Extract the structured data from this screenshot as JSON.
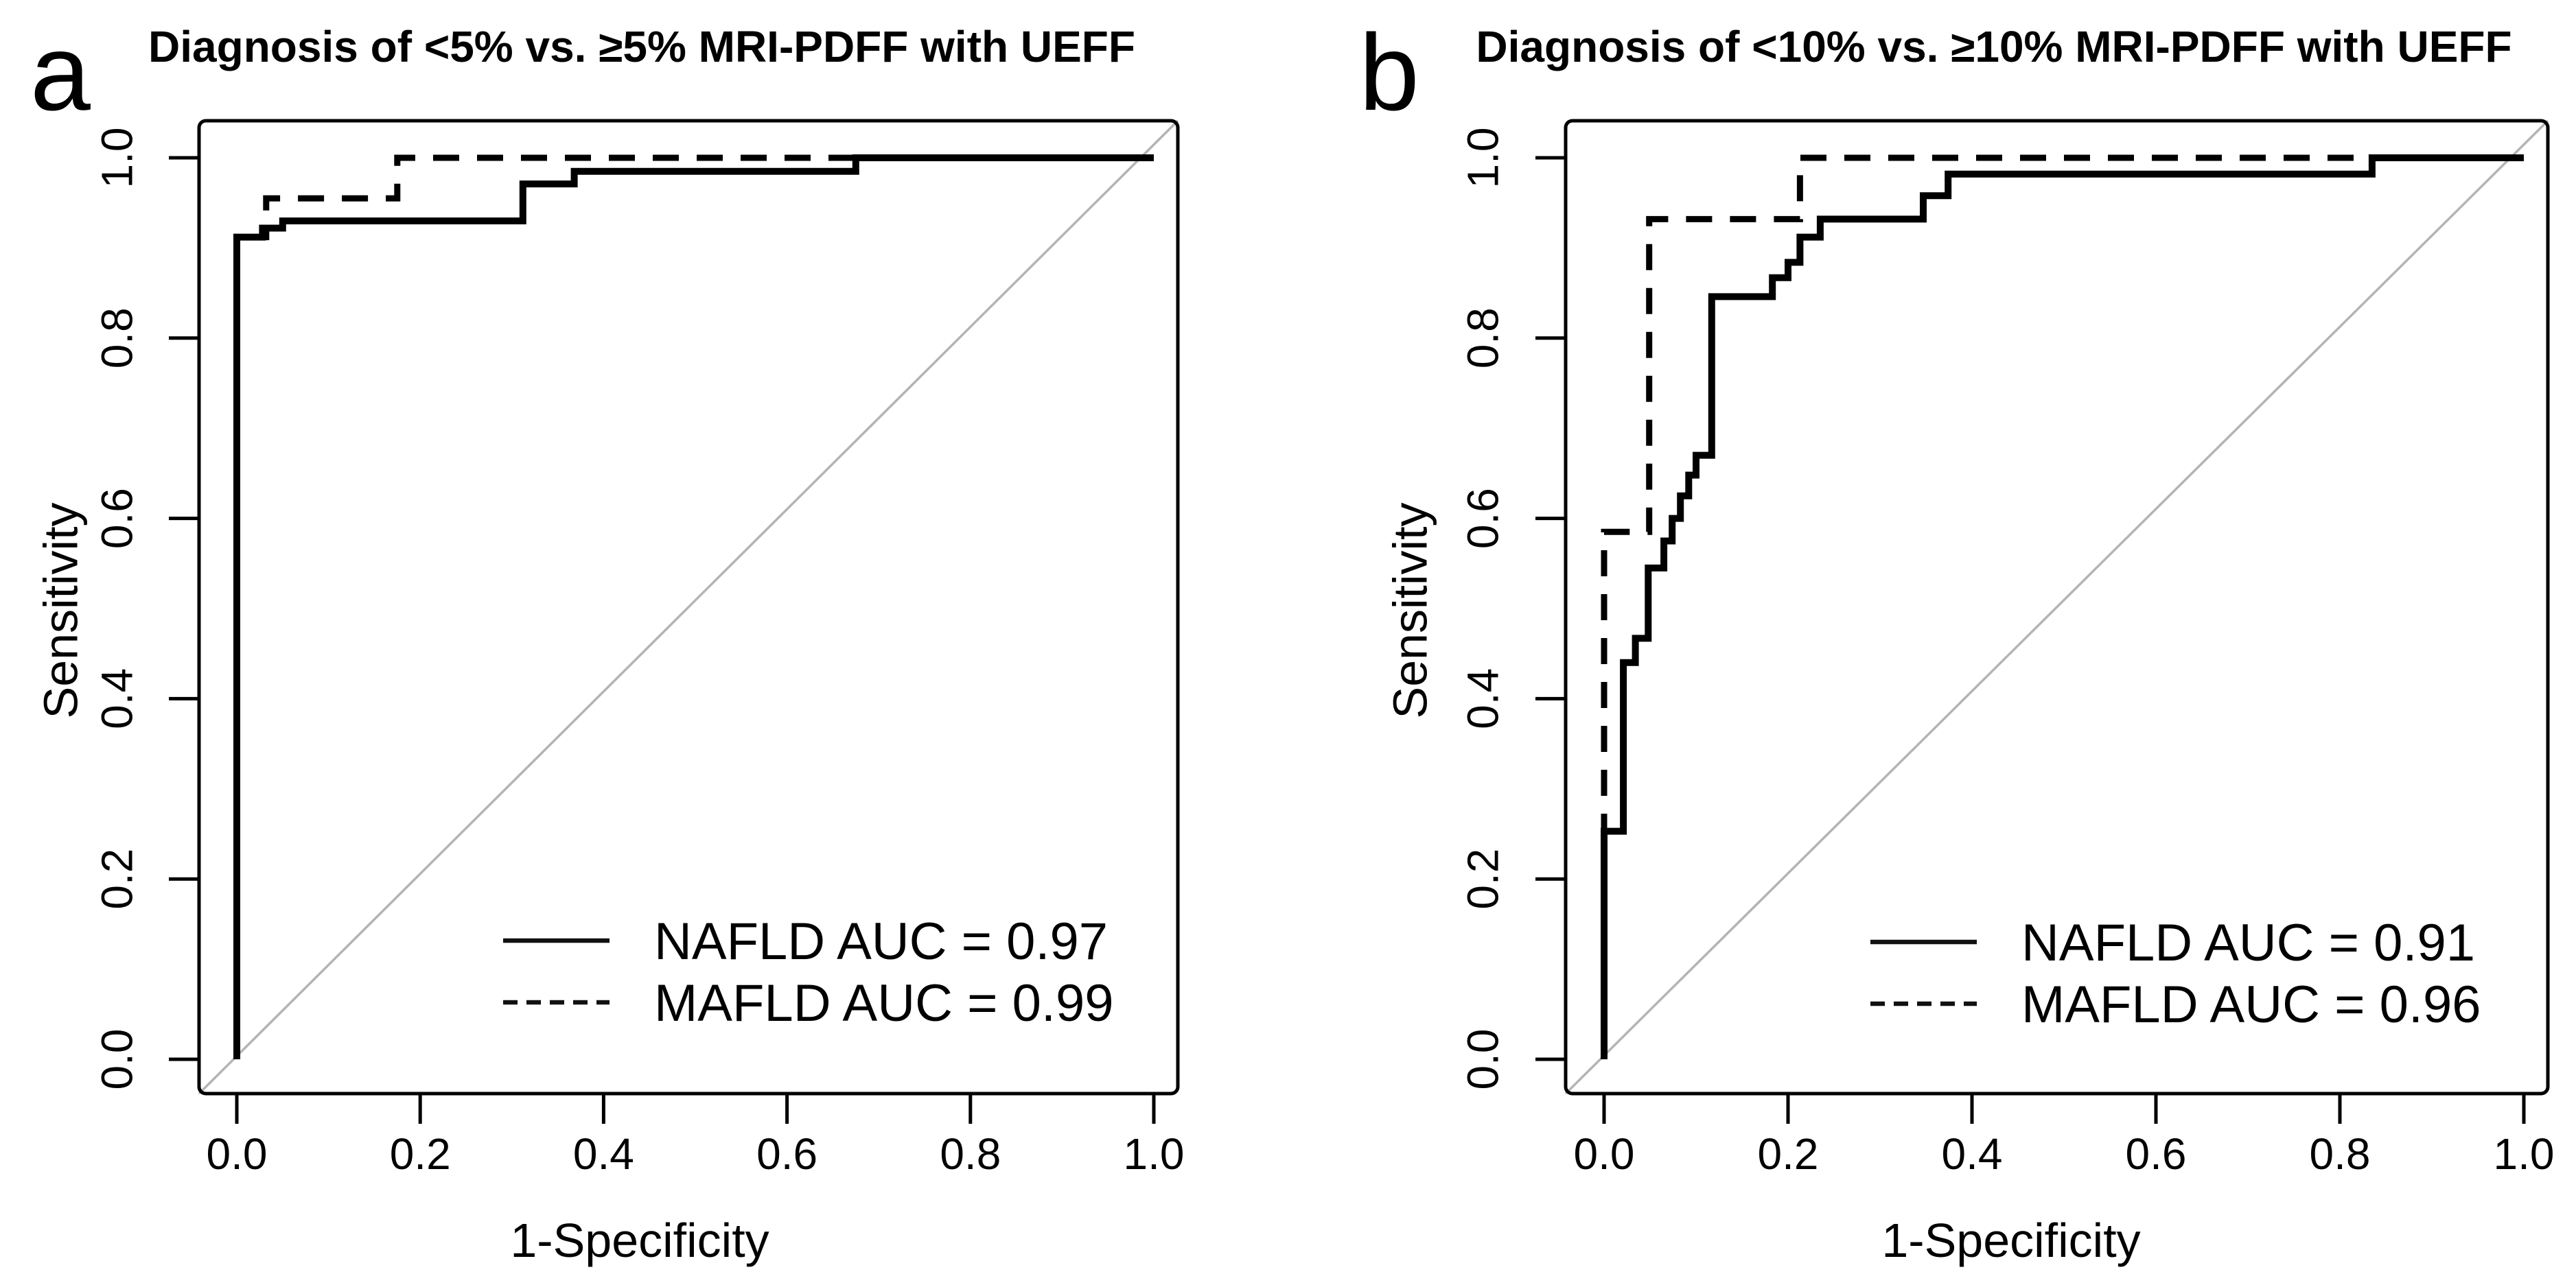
{
  "figure": {
    "background": "#ffffff",
    "curve_color": "#000000",
    "diagonal_color": "#b4b4b4"
  },
  "panels": [
    {
      "label": "a",
      "title": "Diagnosis of <5% vs. ≥5% MRI-PDFF with UEFF",
      "xlabel": "1-Specificity",
      "ylabel": "Sensitivity",
      "legend": [
        {
          "line": "solid",
          "label": "NAFLD AUC = 0.97"
        },
        {
          "line": "dashed",
          "label": "MAFLD AUC = 0.99"
        }
      ]
    },
    {
      "label": "b",
      "title": "Diagnosis of <10% vs. ≥10% MRI-PDFF with UEFF",
      "xlabel": "1-Specificity",
      "ylabel": "Sensitivity",
      "legend": [
        {
          "line": "solid",
          "label": "NAFLD AUC = 0.91"
        },
        {
          "line": "dashed",
          "label": "MAFLD AUC = 0.96"
        }
      ]
    }
  ],
  "chart_data": [
    {
      "type": "line",
      "subtype": "roc-step",
      "panel": "a",
      "title": "Diagnosis of <5% vs. ≥5% MRI-PDFF with UEFF",
      "xlabel": "1-Specificity",
      "ylabel": "Sensitivity",
      "xlim": [
        0,
        1
      ],
      "ylim": [
        0,
        1
      ],
      "xticks": [
        "0.0",
        "0.2",
        "0.4",
        "0.6",
        "0.8",
        "1.0"
      ],
      "yticks": [
        "0.0",
        "0.2",
        "0.4",
        "0.6",
        "0.8",
        "1.0"
      ],
      "grid": false,
      "diagonal_reference": true,
      "legend_position": "bottom-right",
      "series": [
        {
          "name": "NAFLD",
          "auc": 0.97,
          "line": "solid",
          "points": [
            [
              0,
              0
            ],
            [
              0,
              0.912
            ],
            [
              0.028,
              0.912
            ],
            [
              0.028,
              0.922
            ],
            [
              0.05,
              0.922
            ],
            [
              0.05,
              0.93
            ],
            [
              0.312,
              0.93
            ],
            [
              0.312,
              0.971
            ],
            [
              0.368,
              0.971
            ],
            [
              0.368,
              0.985
            ],
            [
              0.675,
              0.985
            ],
            [
              0.675,
              1
            ],
            [
              1,
              1
            ]
          ]
        },
        {
          "name": "MAFLD",
          "auc": 0.99,
          "line": "dashed",
          "points": [
            [
              0,
              0
            ],
            [
              0,
              0.912
            ],
            [
              0.032,
              0.912
            ],
            [
              0.032,
              0.955
            ],
            [
              0.175,
              0.955
            ],
            [
              0.175,
              1
            ],
            [
              1,
              1
            ]
          ]
        }
      ]
    },
    {
      "type": "line",
      "subtype": "roc-step",
      "panel": "b",
      "title": "Diagnosis of <10% vs. ≥10% MRI-PDFF with UEFF",
      "xlabel": "1-Specificity",
      "ylabel": "Sensitivity",
      "xlim": [
        0,
        1
      ],
      "ylim": [
        0,
        1
      ],
      "xticks": [
        "0.0",
        "0.2",
        "0.4",
        "0.6",
        "0.8",
        "1.0"
      ],
      "yticks": [
        "0.0",
        "0.2",
        "0.4",
        "0.6",
        "0.8",
        "1.0"
      ],
      "grid": false,
      "diagonal_reference": true,
      "legend_position": "bottom-right",
      "series": [
        {
          "name": "NAFLD",
          "auc": 0.91,
          "line": "solid",
          "points": [
            [
              0,
              0
            ],
            [
              0,
              0.253
            ],
            [
              0.021,
              0.253
            ],
            [
              0.021,
              0.44
            ],
            [
              0.034,
              0.44
            ],
            [
              0.034,
              0.467
            ],
            [
              0.048,
              0.467
            ],
            [
              0.048,
              0.545
            ],
            [
              0.065,
              0.545
            ],
            [
              0.065,
              0.575
            ],
            [
              0.074,
              0.575
            ],
            [
              0.074,
              0.6
            ],
            [
              0.083,
              0.6
            ],
            [
              0.083,
              0.625
            ],
            [
              0.092,
              0.625
            ],
            [
              0.092,
              0.648
            ],
            [
              0.1,
              0.648
            ],
            [
              0.1,
              0.67
            ],
            [
              0.117,
              0.67
            ],
            [
              0.117,
              0.846
            ],
            [
              0.183,
              0.846
            ],
            [
              0.183,
              0.867
            ],
            [
              0.2,
              0.867
            ],
            [
              0.2,
              0.884
            ],
            [
              0.213,
              0.884
            ],
            [
              0.213,
              0.912
            ],
            [
              0.235,
              0.912
            ],
            [
              0.235,
              0.932
            ],
            [
              0.347,
              0.932
            ],
            [
              0.347,
              0.958
            ],
            [
              0.374,
              0.958
            ],
            [
              0.374,
              0.982
            ],
            [
              0.835,
              0.982
            ],
            [
              0.835,
              1
            ],
            [
              1,
              1
            ]
          ]
        },
        {
          "name": "MAFLD",
          "auc": 0.96,
          "line": "dashed",
          "points": [
            [
              0,
              0
            ],
            [
              0,
              0.585
            ],
            [
              0.049,
              0.585
            ],
            [
              0.049,
              0.932
            ],
            [
              0.213,
              0.932
            ],
            [
              0.213,
              1
            ],
            [
              1,
              1
            ]
          ]
        }
      ]
    }
  ]
}
